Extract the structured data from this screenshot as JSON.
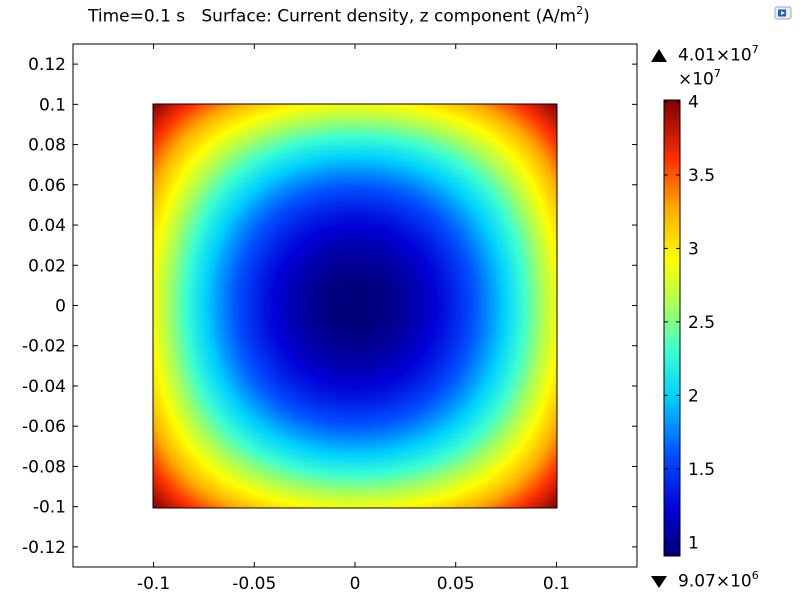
{
  "title": {
    "time": "Time=0.1 s",
    "expression": "Surface: Current density, z component (A/m",
    "exp": "2",
    "close": ")"
  },
  "colorbar": {
    "max_mantissa": "4.01×10",
    "max_exp": "7",
    "multiplier": "×10",
    "multiplier_exp": "7",
    "min_mantissa": "9.07×10",
    "min_exp": "6",
    "ticks": [
      "4",
      "3.5",
      "3",
      "2.5",
      "2",
      "1.5",
      "1"
    ],
    "tick_values": [
      4,
      3.5,
      3,
      2.5,
      2,
      1.5,
      1
    ],
    "range": [
      0.907,
      4.01
    ],
    "colormap": "rainbow"
  },
  "chart_data": {
    "type": "heatmap",
    "title": "Time=0.1 s   Surface: Current density, z component (A/m^2)",
    "xlabel": "",
    "ylabel": "",
    "xlim": [
      -0.14,
      0.14
    ],
    "ylim": [
      -0.13,
      0.13
    ],
    "x_ticks": [
      "-0.1",
      "-0.05",
      "0",
      "0.05",
      "0.1"
    ],
    "x_tick_values": [
      -0.1,
      -0.05,
      0,
      0.05,
      0.1
    ],
    "y_ticks": [
      "0.12",
      "0.1",
      "0.08",
      "0.06",
      "0.04",
      "0.02",
      "0",
      "-0.02",
      "-0.04",
      "-0.06",
      "-0.08",
      "-0.1",
      "-0.12"
    ],
    "y_tick_values": [
      0.12,
      0.1,
      0.08,
      0.06,
      0.04,
      0.02,
      0,
      -0.02,
      -0.04,
      -0.06,
      -0.08,
      -0.1,
      -0.12
    ],
    "domain": {
      "x": [
        -0.1,
        0.1
      ],
      "y": [
        -0.1,
        0.1
      ]
    },
    "field": "Current density, z component",
    "units": "A/m^2",
    "value_min": 9070000.0,
    "value_max": 40100000.0,
    "value_center": 9070000.0,
    "value_corners": 40100000.0,
    "value_edge_midpoints": 29000000.0
  }
}
